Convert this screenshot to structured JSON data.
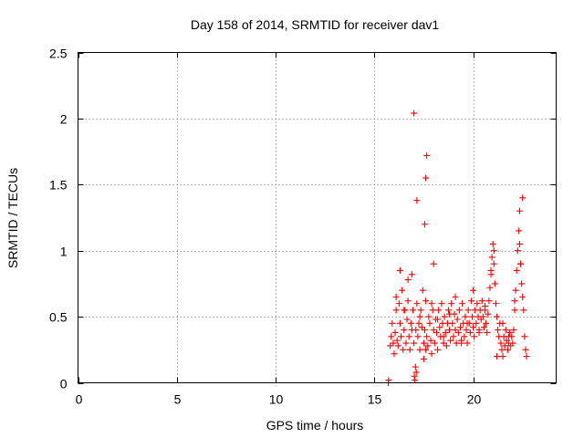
{
  "chart_data": {
    "type": "scatter",
    "title": "Day 158 of 2014, SRMTID for receiver dav1",
    "xlabel": "GPS time / hours",
    "ylabel": "SRMTID / TECUs",
    "xlim": [
      0,
      24.2
    ],
    "ylim": [
      0,
      2.5
    ],
    "xticks": [
      0,
      5,
      10,
      15,
      20
    ],
    "xtick_labels": [
      "0",
      "5",
      "10",
      "15",
      "20"
    ],
    "yticks": [
      0,
      0.5,
      1,
      1.5,
      2,
      2.5
    ],
    "ytick_labels": [
      "0",
      "0.5",
      "1",
      "1.5",
      "2",
      "2.5"
    ],
    "grid": true,
    "marker": "+",
    "series": [
      {
        "name": "dav1",
        "color": "#ff0000",
        "x": [
          15.7,
          15.72,
          15.8,
          15.85,
          15.9,
          15.95,
          16.0,
          16.05,
          16.1,
          16.15,
          16.2,
          16.25,
          16.3,
          16.35,
          16.4,
          16.45,
          16.5,
          16.55,
          16.6,
          16.65,
          16.7,
          16.75,
          16.8,
          16.85,
          16.9,
          16.95,
          17.0,
          17.02,
          17.05,
          17.08,
          17.1,
          17.12,
          17.15,
          17.2,
          17.25,
          17.3,
          17.35,
          17.4,
          17.45,
          17.5,
          17.5,
          17.55,
          17.6,
          17.65,
          17.7,
          17.75,
          17.8,
          17.85,
          17.9,
          17.95,
          18.0,
          18.05,
          18.1,
          18.15,
          18.2,
          18.25,
          18.3,
          18.35,
          18.4,
          18.45,
          18.5,
          18.55,
          18.6,
          18.65,
          18.7,
          18.75,
          18.8,
          18.85,
          18.9,
          18.95,
          19.0,
          19.05,
          19.1,
          19.15,
          19.2,
          19.25,
          19.3,
          19.35,
          19.4,
          19.45,
          19.5,
          19.55,
          19.6,
          19.65,
          19.7,
          19.75,
          19.8,
          19.85,
          19.9,
          19.95,
          20.0,
          20.05,
          20.1,
          20.15,
          20.2,
          20.25,
          20.3,
          20.35,
          20.4,
          20.45,
          20.5,
          20.55,
          20.6,
          20.65,
          20.7,
          20.75,
          20.8,
          20.85,
          20.9,
          20.95,
          21.0,
          21.05,
          21.1,
          21.15,
          21.2,
          21.25,
          21.3,
          21.35,
          21.4,
          21.45,
          21.5,
          21.55,
          21.6,
          21.65,
          21.7,
          21.75,
          21.8,
          21.85,
          21.9,
          21.95,
          22.0,
          22.05,
          22.1,
          22.15,
          22.2,
          22.25,
          22.3,
          22.35,
          22.4,
          22.45,
          22.5,
          22.55,
          22.6,
          22.65,
          22.7,
          16.1,
          16.3,
          16.5,
          16.7,
          16.9,
          17.3,
          17.6,
          17.9,
          18.2,
          18.5,
          18.8,
          19.1,
          19.4,
          19.7,
          20.0,
          20.3,
          20.6,
          20.9,
          21.2,
          21.5,
          21.8,
          22.1,
          22.4,
          17.0,
          17.15,
          17.55,
          17.6,
          17.65,
          18.0,
          21.05,
          22.35,
          22.5
        ],
        "y": [
          0.0,
          0.02,
          0.28,
          0.35,
          0.45,
          0.3,
          0.22,
          0.38,
          0.55,
          0.32,
          0.28,
          0.6,
          0.45,
          0.35,
          0.7,
          0.25,
          0.4,
          0.55,
          0.3,
          0.48,
          0.62,
          0.35,
          0.25,
          0.45,
          0.82,
          0.55,
          0.3,
          0.05,
          0.02,
          0.12,
          0.4,
          0.08,
          0.6,
          0.35,
          0.45,
          0.25,
          0.55,
          0.42,
          0.7,
          0.3,
          0.18,
          0.4,
          0.62,
          0.35,
          0.28,
          0.5,
          0.45,
          0.32,
          0.22,
          0.55,
          0.4,
          0.3,
          0.48,
          0.38,
          0.25,
          0.55,
          0.42,
          0.35,
          0.6,
          0.45,
          0.3,
          0.5,
          0.38,
          0.28,
          0.45,
          0.55,
          0.4,
          0.32,
          0.6,
          0.45,
          0.35,
          0.52,
          0.4,
          0.3,
          0.48,
          0.38,
          0.55,
          0.42,
          0.32,
          0.6,
          0.45,
          0.35,
          0.5,
          0.4,
          0.3,
          0.55,
          0.45,
          0.38,
          0.62,
          0.5,
          0.42,
          0.35,
          0.55,
          0.45,
          0.6,
          0.5,
          0.4,
          0.55,
          0.48,
          0.62,
          0.5,
          0.42,
          0.55,
          0.45,
          0.38,
          0.52,
          0.62,
          0.72,
          0.85,
          0.95,
          1.05,
          0.9,
          0.75,
          0.6,
          0.5,
          0.4,
          0.35,
          0.45,
          0.3,
          0.25,
          0.2,
          0.35,
          0.28,
          0.4,
          0.32,
          0.25,
          0.3,
          0.38,
          0.28,
          0.35,
          0.3,
          0.4,
          0.55,
          0.7,
          0.85,
          1.0,
          1.15,
          1.05,
          0.9,
          0.75,
          0.65,
          0.55,
          0.35,
          0.25,
          0.2,
          0.65,
          0.85,
          0.55,
          0.78,
          0.4,
          0.5,
          0.25,
          0.6,
          0.48,
          0.35,
          0.52,
          0.65,
          0.3,
          0.45,
          0.7,
          0.38,
          0.58,
          0.82,
          0.2,
          0.45,
          0.35,
          0.62,
          0.9,
          2.04,
          1.38,
          1.2,
          1.55,
          1.72,
          0.9,
          1.0,
          1.3,
          1.4
        ]
      }
    ]
  }
}
